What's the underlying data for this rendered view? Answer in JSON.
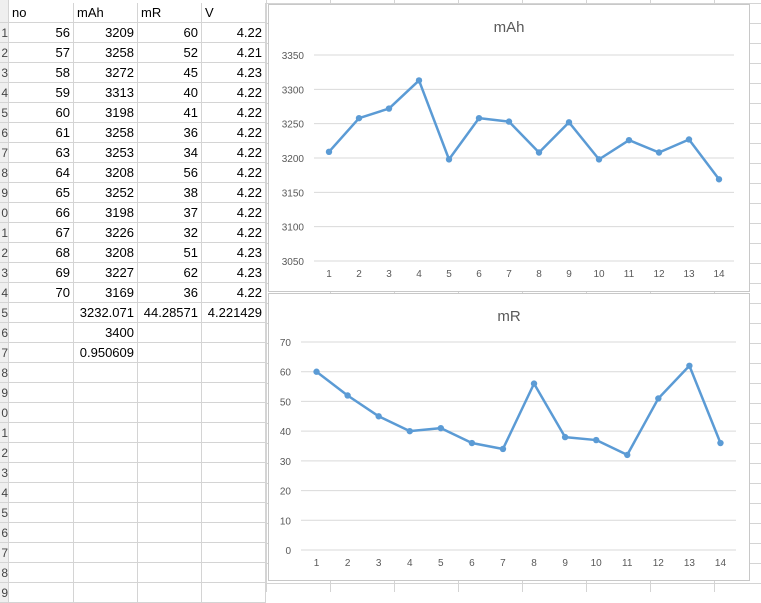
{
  "sheet": {
    "headers": [
      "no",
      "mAh",
      "mR",
      "V"
    ],
    "row_numbers": [
      "",
      "1",
      "2",
      "3",
      "4",
      "5",
      "6",
      "7",
      "8",
      "9",
      "0",
      "1",
      "2",
      "3",
      "4",
      "5",
      "6",
      "7",
      "8",
      "9",
      "0",
      "1",
      "2",
      "3",
      "4",
      "5",
      "6",
      "7",
      "8",
      "9"
    ],
    "rows": [
      [
        "56",
        "3209",
        "60",
        "4.22"
      ],
      [
        "57",
        "3258",
        "52",
        "4.21"
      ],
      [
        "58",
        "3272",
        "45",
        "4.23"
      ],
      [
        "59",
        "3313",
        "40",
        "4.22"
      ],
      [
        "60",
        "3198",
        "41",
        "4.22"
      ],
      [
        "61",
        "3258",
        "36",
        "4.22"
      ],
      [
        "63",
        "3253",
        "34",
        "4.22"
      ],
      [
        "64",
        "3208",
        "56",
        "4.22"
      ],
      [
        "65",
        "3252",
        "38",
        "4.22"
      ],
      [
        "66",
        "3198",
        "37",
        "4.22"
      ],
      [
        "67",
        "3226",
        "32",
        "4.22"
      ],
      [
        "68",
        "3208",
        "51",
        "4.23"
      ],
      [
        "69",
        "3227",
        "62",
        "4.23"
      ],
      [
        "70",
        "3169",
        "36",
        "4.22"
      ]
    ],
    "summary": [
      [
        "",
        "3232.071",
        "44.28571",
        "4.221429"
      ],
      [
        "",
        "3400",
        "",
        ""
      ],
      [
        "",
        "0.950609",
        "",
        ""
      ]
    ]
  },
  "chart_data": [
    {
      "type": "line",
      "title": "mAh",
      "x": [
        1,
        2,
        3,
        4,
        5,
        6,
        7,
        8,
        9,
        10,
        11,
        12,
        13,
        14
      ],
      "series": [
        {
          "values": [
            3209,
            3258,
            3272,
            3313,
            3198,
            3258,
            3253,
            3208,
            3252,
            3198,
            3226,
            3208,
            3227,
            3169
          ]
        }
      ],
      "ylim": [
        3050,
        3350
      ],
      "yticks": [
        3050,
        3100,
        3150,
        3200,
        3250,
        3300,
        3350
      ],
      "grid": true,
      "color": "#5b9bd5"
    },
    {
      "type": "line",
      "title": "mR",
      "x": [
        1,
        2,
        3,
        4,
        5,
        6,
        7,
        8,
        9,
        10,
        11,
        12,
        13,
        14
      ],
      "series": [
        {
          "values": [
            60,
            52,
            45,
            40,
            41,
            36,
            34,
            56,
            38,
            37,
            32,
            51,
            62,
            36
          ]
        }
      ],
      "ylim": [
        0,
        70
      ],
      "yticks": [
        0,
        10,
        20,
        30,
        40,
        50,
        60,
        70
      ],
      "grid": true,
      "color": "#5b9bd5"
    }
  ]
}
